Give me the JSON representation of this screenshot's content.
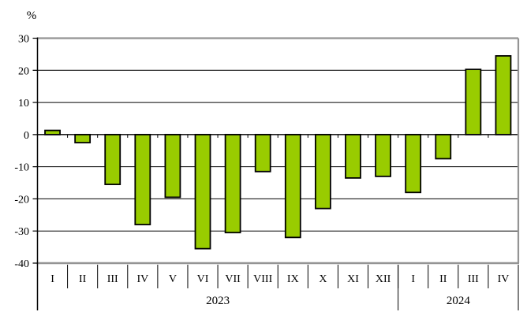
{
  "chart_data": {
    "type": "bar",
    "title": "",
    "ylabel": "%",
    "xlabel": "",
    "ylim": [
      -40,
      30
    ],
    "ytick_step": 10,
    "yticks": [
      30,
      20,
      10,
      0,
      -10,
      -20,
      -30,
      -40
    ],
    "grid": true,
    "legend": "none",
    "bar_color": "#99CC00",
    "bar_border_color": "#000000",
    "axis_color": "#000000",
    "frame_color": "#949494",
    "groups": [
      {
        "year": "2023",
        "categories": [
          "I",
          "II",
          "III",
          "IV",
          "V",
          "VI",
          "VII",
          "VIII",
          "IX",
          "X",
          "XI",
          "XII"
        ],
        "values": [
          1.3,
          -2.5,
          -15.5,
          -28,
          -19.5,
          -35.5,
          -30.5,
          -11.5,
          -32,
          -23,
          -13.5,
          -13
        ]
      },
      {
        "year": "2024",
        "categories": [
          "I",
          "II",
          "III",
          "IV"
        ],
        "values": [
          -18,
          -7.5,
          20.3,
          24.5
        ]
      }
    ]
  }
}
